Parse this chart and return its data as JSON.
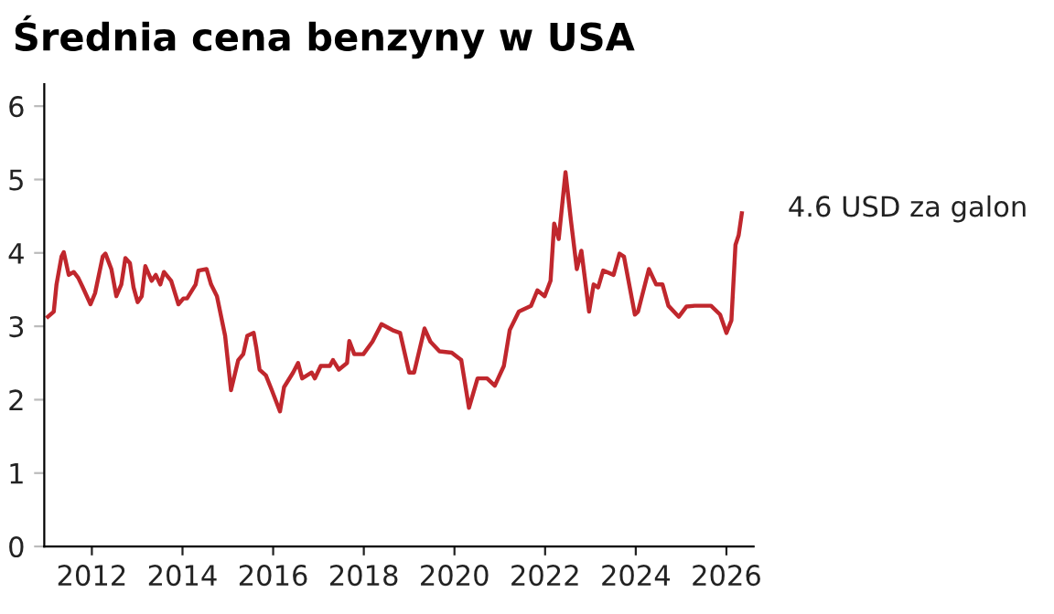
{
  "chart_data": {
    "type": "line",
    "title": "Średnia cena benzyny w USA",
    "x": [
      2011.03,
      2011.16,
      2011.22,
      2011.33,
      2011.38,
      2011.49,
      2011.6,
      2011.7,
      2011.8,
      2011.97,
      2012.07,
      2012.24,
      2012.3,
      2012.43,
      2012.54,
      2012.65,
      2012.74,
      2012.84,
      2012.92,
      2013.01,
      2013.1,
      2013.18,
      2013.32,
      2013.41,
      2013.51,
      2013.59,
      2013.75,
      2013.91,
      2014.02,
      2014.1,
      2014.29,
      2014.35,
      2014.53,
      2014.63,
      2014.76,
      2014.94,
      2015.07,
      2015.23,
      2015.34,
      2015.43,
      2015.57,
      2015.63,
      2015.7,
      2015.84,
      2015.97,
      2016.15,
      2016.24,
      2016.44,
      2016.55,
      2016.64,
      2016.85,
      2016.92,
      2017.05,
      2017.25,
      2017.32,
      2017.45,
      2017.63,
      2017.68,
      2017.79,
      2017.99,
      2018.19,
      2018.39,
      2018.66,
      2018.8,
      2019.0,
      2019.11,
      2019.34,
      2019.47,
      2019.67,
      2019.94,
      2020.15,
      2020.32,
      2020.51,
      2020.72,
      2020.89,
      2021.09,
      2021.22,
      2021.42,
      2021.69,
      2021.83,
      2021.99,
      2022.12,
      2022.2,
      2022.3,
      2022.45,
      2022.57,
      2022.7,
      2022.8,
      2022.97,
      2023.07,
      2023.17,
      2023.28,
      2023.51,
      2023.64,
      2023.74,
      2023.98,
      2024.05,
      2024.29,
      2024.45,
      2024.59,
      2024.72,
      2024.95,
      2025.12,
      2025.3,
      2025.66,
      2025.86,
      2026.0,
      2026.11,
      2026.2,
      2026.27,
      2026.34
    ],
    "series": [
      {
        "color": "#c0272d",
        "values": [
          3.13,
          3.2,
          3.57,
          3.95,
          4.01,
          3.7,
          3.74,
          3.66,
          3.53,
          3.3,
          3.45,
          3.95,
          3.99,
          3.78,
          3.41,
          3.57,
          3.93,
          3.86,
          3.53,
          3.33,
          3.41,
          3.82,
          3.62,
          3.7,
          3.57,
          3.74,
          3.62,
          3.3,
          3.38,
          3.38,
          3.57,
          3.76,
          3.78,
          3.57,
          3.41,
          2.87,
          2.13,
          2.54,
          2.62,
          2.87,
          2.91,
          2.7,
          2.41,
          2.33,
          2.13,
          1.84,
          2.17,
          2.37,
          2.5,
          2.29,
          2.37,
          2.29,
          2.46,
          2.46,
          2.54,
          2.41,
          2.5,
          2.8,
          2.62,
          2.62,
          2.79,
          3.03,
          2.94,
          2.91,
          2.37,
          2.37,
          2.97,
          2.79,
          2.66,
          2.64,
          2.54,
          1.89,
          2.29,
          2.29,
          2.19,
          2.46,
          2.95,
          3.2,
          3.28,
          3.49,
          3.41,
          3.62,
          4.4,
          4.19,
          5.1,
          4.44,
          3.78,
          4.03,
          3.2,
          3.57,
          3.53,
          3.76,
          3.7,
          3.99,
          3.95,
          3.16,
          3.2,
          3.78,
          3.57,
          3.57,
          3.28,
          3.13,
          3.27,
          3.28,
          3.28,
          3.16,
          2.91,
          3.08,
          4.11,
          4.24,
          4.54
        ]
      }
    ],
    "xlim": [
      2010.95,
      2026.6
    ],
    "xticks": [
      2012,
      2014,
      2016,
      2018,
      2020,
      2022,
      2024,
      2026
    ],
    "ylim": [
      0,
      6.3
    ],
    "yticks": [
      0,
      1,
      2,
      3,
      4,
      5,
      6
    ],
    "annotations": [
      {
        "text": "4.6 USD za galon",
        "x": 2026.34,
        "y": 4.6
      }
    ],
    "grid": false,
    "legend": false
  }
}
